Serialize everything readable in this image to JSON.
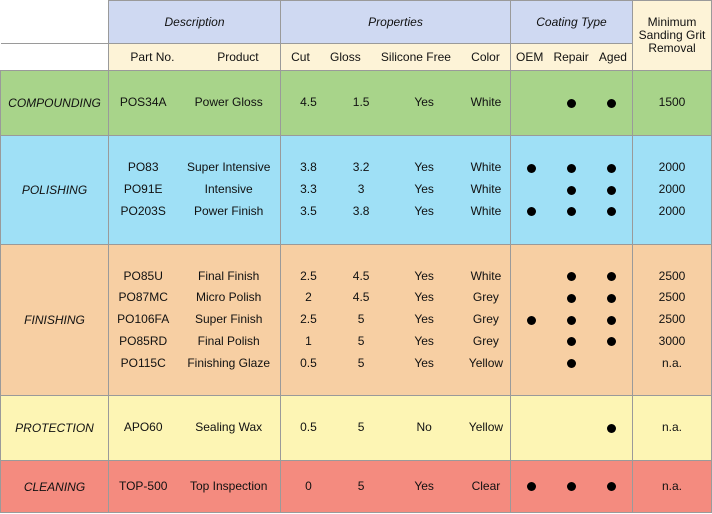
{
  "header": {
    "description": "Description",
    "properties": "Properties",
    "coating_type": "Coating Type",
    "min_grit": "Minimum Sanding Grit Removal",
    "columns": {
      "part_no": "Part No.",
      "product": "Product",
      "cut": "Cut",
      "gloss": "Gloss",
      "silicone_free": "Silicone Free",
      "color": "Color",
      "oem": "OEM",
      "repair": "Repair",
      "aged": "Aged"
    }
  },
  "colors": {
    "header_blue": "#cfd9f2",
    "header_cream": "#fdf3d7",
    "compounding": "#a8d48a",
    "polishing": "#9fe0f6",
    "finishing": "#f7cfa3",
    "protection": "#fdf5b4",
    "cleaning": "#f48b7f"
  },
  "groups": [
    {
      "name": "COMPOUNDING",
      "color": "#a8d48a",
      "rows": [
        {
          "part_no": "POS34A",
          "product": "Power Gloss",
          "cut": "4.5",
          "gloss": "1.5",
          "silicone_free": "Yes",
          "color": "White",
          "oem": false,
          "repair": true,
          "aged": true,
          "grit": "1500"
        }
      ]
    },
    {
      "name": "POLISHING",
      "color": "#9fe0f6",
      "rows": [
        {
          "part_no": "PO83",
          "product": "Super Intensive",
          "cut": "3.8",
          "gloss": "3.2",
          "silicone_free": "Yes",
          "color": "White",
          "oem": true,
          "repair": true,
          "aged": true,
          "grit": "2000"
        },
        {
          "part_no": "PO91E",
          "product": "Intensive",
          "cut": "3.3",
          "gloss": "3",
          "silicone_free": "Yes",
          "color": "White",
          "oem": false,
          "repair": true,
          "aged": true,
          "grit": "2000"
        },
        {
          "part_no": "PO203S",
          "product": "Power Finish",
          "cut": "3.5",
          "gloss": "3.8",
          "silicone_free": "Yes",
          "color": "White",
          "oem": true,
          "repair": true,
          "aged": true,
          "grit": "2000"
        }
      ]
    },
    {
      "name": "FINISHING",
      "color": "#f7cfa3",
      "rows": [
        {
          "part_no": "PO85U",
          "product": "Final Finish",
          "cut": "2.5",
          "gloss": "4.5",
          "silicone_free": "Yes",
          "color": "White",
          "oem": false,
          "repair": true,
          "aged": true,
          "grit": "2500"
        },
        {
          "part_no": "PO87MC",
          "product": "Micro Polish",
          "cut": "2",
          "gloss": "4.5",
          "silicone_free": "Yes",
          "color": "Grey",
          "oem": false,
          "repair": true,
          "aged": true,
          "grit": "2500"
        },
        {
          "part_no": "PO106FA",
          "product": "Super Finish",
          "cut": "2.5",
          "gloss": "5",
          "silicone_free": "Yes",
          "color": "Grey",
          "oem": true,
          "repair": true,
          "aged": true,
          "grit": "2500"
        },
        {
          "part_no": "PO85RD",
          "product": "Final Polish",
          "cut": "1",
          "gloss": "5",
          "silicone_free": "Yes",
          "color": "Grey",
          "oem": false,
          "repair": true,
          "aged": true,
          "grit": "3000"
        },
        {
          "part_no": "PO115C",
          "product": "Finishing Glaze",
          "cut": "0.5",
          "gloss": "5",
          "silicone_free": "Yes",
          "color": "Yellow",
          "oem": false,
          "repair": true,
          "aged": false,
          "grit": "n.a."
        }
      ]
    },
    {
      "name": "PROTECTION",
      "color": "#fdf5b4",
      "rows": [
        {
          "part_no": "APO60",
          "product": "Sealing Wax",
          "cut": "0.5",
          "gloss": "5",
          "silicone_free": "No",
          "color": "Yellow",
          "oem": false,
          "repair": false,
          "aged": true,
          "grit": "n.a."
        }
      ]
    },
    {
      "name": "CLEANING",
      "color": "#f48b7f",
      "rows": [
        {
          "part_no": "TOP-500",
          "product": "Top Inspection",
          "cut": "0",
          "gloss": "5",
          "silicone_free": "Yes",
          "color": "Clear",
          "oem": true,
          "repair": true,
          "aged": true,
          "grit": "n.a."
        }
      ]
    }
  ]
}
